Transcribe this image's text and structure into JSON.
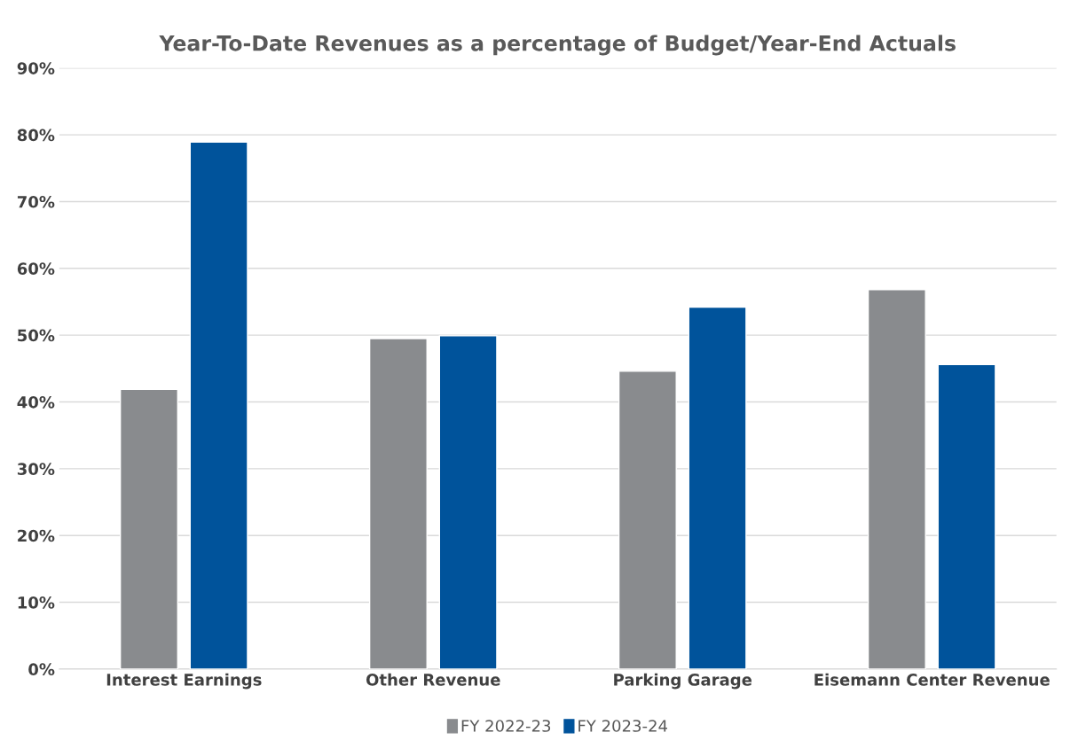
{
  "chart_data": {
    "type": "bar",
    "title": "Year-To-Date Revenues as a percentage of Budget/Year-End Actuals",
    "categories": [
      "Interest Earnings",
      "Other Revenue",
      "Parking Garage",
      "Eisemann Center Revenue"
    ],
    "series": [
      {
        "name": "FY 2022-23",
        "color": "#898b8e",
        "values": [
          41.9,
          49.5,
          44.6,
          56.8
        ]
      },
      {
        "name": "FY 2023-24",
        "color": "#00539b",
        "values": [
          78.9,
          49.9,
          54.2,
          45.6
        ]
      }
    ],
    "ylim": [
      0,
      90
    ],
    "yticks": [
      {
        "value": 0,
        "label": "0%"
      },
      {
        "value": 10,
        "label": "10%"
      },
      {
        "value": 20,
        "label": "20%"
      },
      {
        "value": 30,
        "label": "30%"
      },
      {
        "value": 40,
        "label": "40%"
      },
      {
        "value": 50,
        "label": "50%"
      },
      {
        "value": 60,
        "label": "60%"
      },
      {
        "value": 70,
        "label": "70%"
      },
      {
        "value": 80,
        "label": "80%"
      },
      {
        "value": 90,
        "label": "90%"
      }
    ],
    "grid": "y",
    "legend": "bottom"
  }
}
